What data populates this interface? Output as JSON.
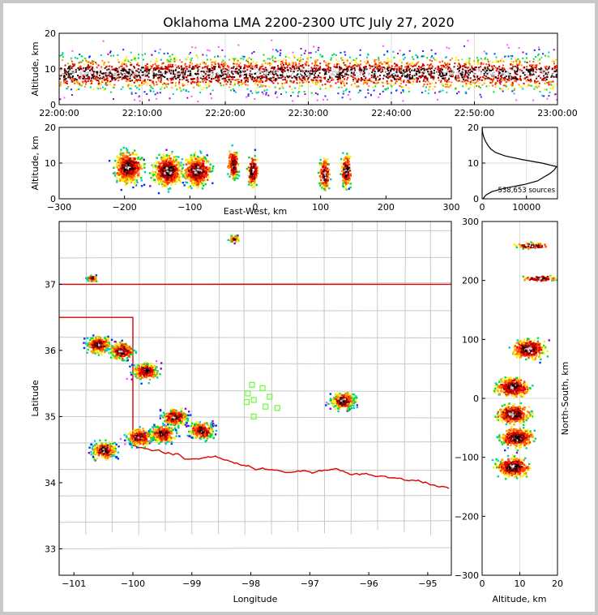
{
  "chart_data": {
    "type": "scatter",
    "title": "Oklahoma LMA 2200-2300 UTC July 27, 2020",
    "colors": {
      "state_border": "#dd0000",
      "county": "#c8c8c8",
      "stations": "#66ff33"
    },
    "panels": {
      "time_altitude": {
        "ylabel": "Altitude, km",
        "ylim": [
          0,
          20
        ],
        "yticks": [
          "0",
          "10",
          "20"
        ],
        "xticks": [
          "22:00:00",
          "22:10:00",
          "22:20:00",
          "22:30:00",
          "22:40:00",
          "22:50:00",
          "23:00:00"
        ]
      },
      "ew_altitude": {
        "xlabel": "East-West, km",
        "ylabel": "Altitude, km",
        "xlim": [
          -300,
          300
        ],
        "ylim": [
          0,
          20
        ],
        "xticks": [
          "−300",
          "−200",
          "−100",
          "0",
          "100",
          "200",
          "300"
        ],
        "yticks": [
          "0",
          "10",
          "20"
        ],
        "clusters": [
          {
            "x": -195,
            "z": 9
          },
          {
            "x": -135,
            "z": 8
          },
          {
            "x": -90,
            "z": 8
          },
          {
            "x": -35,
            "z": 10
          },
          {
            "x": -5,
            "z": 8
          },
          {
            "x": 105,
            "z": 7
          },
          {
            "x": 138,
            "z": 8
          }
        ]
      },
      "histogram": {
        "annotation": "538,653 sources",
        "xticks": [
          "0",
          "10000"
        ],
        "yticks": [
          "0",
          "10",
          "20"
        ],
        "xlim": [
          0,
          17000
        ],
        "ylim": [
          0,
          20
        ],
        "profile_alt": [
          0,
          1,
          2,
          3,
          4,
          5,
          6,
          7,
          8,
          9,
          10,
          11,
          12,
          13,
          14,
          15,
          16,
          17,
          18,
          19,
          20
        ],
        "profile_count": [
          200,
          800,
          2200,
          5200,
          9500,
          12500,
          13800,
          15200,
          16200,
          16800,
          13500,
          9000,
          5200,
          3000,
          1900,
          1300,
          800,
          450,
          200,
          60,
          10
        ]
      },
      "plan": {
        "xlabel": "Longitude",
        "ylabel": "Latitude",
        "xlim": [
          -101.25,
          -94.6
        ],
        "ylim": [
          32.6,
          37.95
        ],
        "xticks": [
          "−101",
          "−100",
          "−99",
          "−98",
          "−97",
          "−96",
          "−95"
        ],
        "yticks": [
          "33",
          "34",
          "35",
          "36",
          "37"
        ],
        "clusters": [
          {
            "lon": -100.6,
            "lat": 36.1
          },
          {
            "lon": -100.2,
            "lat": 36.0
          },
          {
            "lon": -99.8,
            "lat": 35.7
          },
          {
            "lon": -99.3,
            "lat": 35.0
          },
          {
            "lon": -99.9,
            "lat": 34.7
          },
          {
            "lon": -99.5,
            "lat": 34.75
          },
          {
            "lon": -98.85,
            "lat": 34.8
          },
          {
            "lon": -100.5,
            "lat": 34.5
          },
          {
            "lon": -96.45,
            "lat": 35.25
          },
          {
            "lon": -98.3,
            "lat": 37.7
          },
          {
            "lon": -100.7,
            "lat": 37.1
          }
        ],
        "stations": [
          [
            -97.98,
            35.48
          ],
          [
            -98.05,
            35.35
          ],
          [
            -97.95,
            35.25
          ],
          [
            -98.07,
            35.22
          ],
          [
            -97.68,
            35.3
          ],
          [
            -97.8,
            35.43
          ],
          [
            -97.75,
            35.15
          ],
          [
            -97.55,
            35.13
          ],
          [
            -97.95,
            35.0
          ]
        ]
      },
      "ns_altitude": {
        "xlabel": "Altitude, km",
        "ylabel": "North-South, km",
        "xlim": [
          0,
          20
        ],
        "ylim": [
          -300,
          300
        ],
        "xticks": [
          "0",
          "10",
          "20"
        ],
        "yticks": [
          "−300",
          "−200",
          "−100",
          "0",
          "100",
          "200",
          "300"
        ],
        "clusters": [
          {
            "y": 260,
            "z": 13
          },
          {
            "y": 205,
            "z": 15
          },
          {
            "y": 85,
            "z": 12
          },
          {
            "y": 20,
            "z": 8
          },
          {
            "y": -25,
            "z": 8
          },
          {
            "y": -65,
            "z": 9
          },
          {
            "y": -115,
            "z": 8
          }
        ]
      }
    }
  }
}
